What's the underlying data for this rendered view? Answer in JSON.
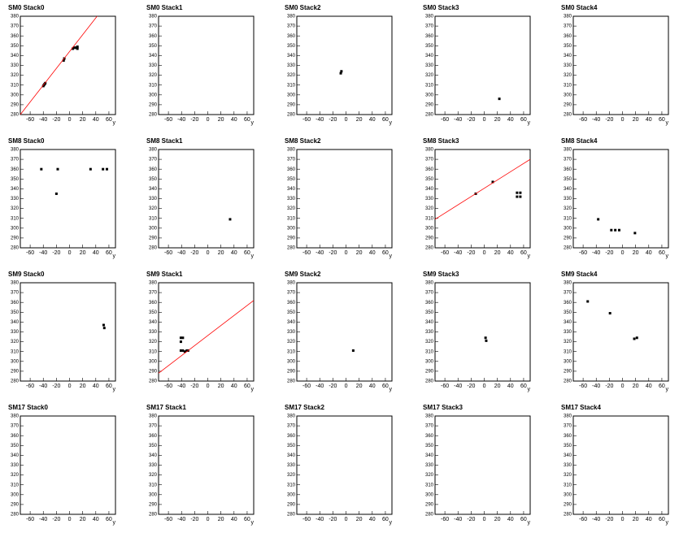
{
  "chart_data": [
    {
      "type": "scatter",
      "title": "SM0 Stack0",
      "x_label": "y",
      "xlim": [
        -75,
        70
      ],
      "ylim": [
        280,
        380
      ],
      "xticks": [
        -60,
        -40,
        -20,
        0,
        20,
        40,
        60
      ],
      "yticks": [
        280,
        290,
        300,
        310,
        320,
        330,
        340,
        350,
        360,
        370,
        380
      ],
      "series": [
        {
          "color": "#000000",
          "x": [
            -40,
            -39,
            -38,
            -37,
            -9,
            -8,
            5,
            7,
            9,
            12,
            12
          ],
          "values": [
            309,
            310,
            311,
            312,
            335,
            337,
            347,
            348,
            348,
            347,
            349
          ]
        },
        {
          "type": "line",
          "color": "#ff0000",
          "x": [
            -75,
            42
          ],
          "values": [
            280,
            380
          ]
        }
      ]
    },
    {
      "type": "scatter",
      "title": "SM0 Stack1",
      "x_label": "y",
      "xlim": [
        -75,
        70
      ],
      "ylim": [
        280,
        380
      ],
      "xticks": [
        -60,
        -40,
        -20,
        0,
        20,
        40,
        60
      ],
      "yticks": [
        280,
        290,
        300,
        310,
        320,
        330,
        340,
        350,
        360,
        370,
        380
      ],
      "series": []
    },
    {
      "type": "scatter",
      "title": "SM0 Stack2",
      "x_label": "y",
      "xlim": [
        -75,
        70
      ],
      "ylim": [
        280,
        380
      ],
      "xticks": [
        -60,
        -40,
        -20,
        0,
        20,
        40,
        60
      ],
      "yticks": [
        280,
        290,
        300,
        310,
        320,
        330,
        340,
        350,
        360,
        370,
        380
      ],
      "series": [
        {
          "color": "#000000",
          "x": [
            -8,
            -7
          ],
          "values": [
            322,
            324
          ]
        }
      ]
    },
    {
      "type": "scatter",
      "title": "SM0 Stack3",
      "x_label": "y",
      "xlim": [
        -75,
        70
      ],
      "ylim": [
        280,
        380
      ],
      "xticks": [
        -60,
        -40,
        -20,
        0,
        20,
        40,
        60
      ],
      "yticks": [
        280,
        290,
        300,
        310,
        320,
        330,
        340,
        350,
        360,
        370,
        380
      ],
      "series": [
        {
          "color": "#000000",
          "x": [
            23
          ],
          "values": [
            296
          ]
        }
      ]
    },
    {
      "type": "scatter",
      "title": "SM0 Stack4",
      "x_label": "y",
      "xlim": [
        -75,
        70
      ],
      "ylim": [
        280,
        380
      ],
      "xticks": [
        -60,
        -40,
        -20,
        0,
        20,
        40,
        60
      ],
      "yticks": [
        280,
        290,
        300,
        310,
        320,
        330,
        340,
        350,
        360,
        370,
        380
      ],
      "series": []
    },
    {
      "type": "scatter",
      "title": "SM8 Stack0",
      "x_label": "y",
      "xlim": [
        -75,
        70
      ],
      "ylim": [
        280,
        380
      ],
      "xticks": [
        -60,
        -40,
        -20,
        0,
        20,
        40,
        60
      ],
      "yticks": [
        280,
        290,
        300,
        310,
        320,
        330,
        340,
        350,
        360,
        370,
        380
      ],
      "series": [
        {
          "color": "#000000",
          "x": [
            -43,
            -18,
            -20,
            32,
            51,
            57
          ],
          "values": [
            360,
            360,
            335,
            360,
            360,
            360
          ]
        }
      ]
    },
    {
      "type": "scatter",
      "title": "SM8 Stack1",
      "x_label": "y",
      "xlim": [
        -75,
        70
      ],
      "ylim": [
        280,
        380
      ],
      "xticks": [
        -60,
        -40,
        -20,
        0,
        20,
        40,
        60
      ],
      "yticks": [
        280,
        290,
        300,
        310,
        320,
        330,
        340,
        350,
        360,
        370,
        380
      ],
      "series": [
        {
          "color": "#000000",
          "x": [
            34
          ],
          "values": [
            309
          ]
        }
      ]
    },
    {
      "type": "scatter",
      "title": "SM8 Stack2",
      "x_label": "y",
      "xlim": [
        -75,
        70
      ],
      "ylim": [
        280,
        380
      ],
      "xticks": [
        -60,
        -40,
        -20,
        0,
        20,
        40,
        60
      ],
      "yticks": [
        280,
        290,
        300,
        310,
        320,
        330,
        340,
        350,
        360,
        370,
        380
      ],
      "series": []
    },
    {
      "type": "scatter",
      "title": "SM8 Stack3",
      "x_label": "y",
      "xlim": [
        -75,
        70
      ],
      "ylim": [
        280,
        380
      ],
      "xticks": [
        -60,
        -40,
        -20,
        0,
        20,
        40,
        60
      ],
      "yticks": [
        280,
        290,
        300,
        310,
        320,
        330,
        340,
        350,
        360,
        370,
        380
      ],
      "series": [
        {
          "color": "#000000",
          "x": [
            -13,
            13,
            50,
            55,
            50,
            55
          ],
          "values": [
            335,
            347,
            336,
            336,
            332,
            332
          ]
        },
        {
          "type": "line",
          "color": "#ff0000",
          "x": [
            -75,
            70
          ],
          "values": [
            309,
            370
          ]
        }
      ]
    },
    {
      "type": "scatter",
      "title": "SM8 Stack4",
      "x_label": "y",
      "xlim": [
        -75,
        70
      ],
      "ylim": [
        280,
        380
      ],
      "xticks": [
        -60,
        -40,
        -20,
        0,
        20,
        40,
        60
      ],
      "yticks": [
        280,
        290,
        300,
        310,
        320,
        330,
        340,
        350,
        360,
        370,
        380
      ],
      "series": [
        {
          "color": "#000000",
          "x": [
            -37,
            -17,
            -11,
            -5,
            19
          ],
          "values": [
            309,
            298,
            298,
            298,
            295
          ]
        }
      ]
    },
    {
      "type": "scatter",
      "title": "SM9 Stack0",
      "x_label": "y",
      "xlim": [
        -75,
        70
      ],
      "ylim": [
        280,
        380
      ],
      "xticks": [
        -60,
        -40,
        -20,
        0,
        20,
        40,
        60
      ],
      "yticks": [
        280,
        290,
        300,
        310,
        320,
        330,
        340,
        350,
        360,
        370,
        380
      ],
      "series": [
        {
          "color": "#000000",
          "x": [
            52,
            53
          ],
          "values": [
            337,
            334
          ]
        }
      ]
    },
    {
      "type": "scatter",
      "title": "SM9 Stack1",
      "x_label": "y",
      "xlim": [
        -75,
        70
      ],
      "ylim": [
        280,
        380
      ],
      "xticks": [
        -60,
        -40,
        -20,
        0,
        20,
        40,
        60
      ],
      "yticks": [
        280,
        290,
        300,
        310,
        320,
        330,
        340,
        350,
        360,
        370,
        380
      ],
      "series": [
        {
          "color": "#000000",
          "x": [
            -41,
            -38,
            -41,
            -41,
            -38,
            -35,
            -32,
            -30
          ],
          "values": [
            324,
            324,
            320,
            311,
            311,
            310,
            311,
            311
          ]
        },
        {
          "type": "line",
          "color": "#ff0000",
          "x": [
            -75,
            70
          ],
          "values": [
            288,
            362
          ]
        }
      ]
    },
    {
      "type": "scatter",
      "title": "SM9 Stack2",
      "x_label": "y",
      "xlim": [
        -75,
        70
      ],
      "ylim": [
        280,
        380
      ],
      "xticks": [
        -60,
        -40,
        -20,
        0,
        20,
        40,
        60
      ],
      "yticks": [
        280,
        290,
        300,
        310,
        320,
        330,
        340,
        350,
        360,
        370,
        380
      ],
      "series": [
        {
          "color": "#000000",
          "x": [
            11
          ],
          "values": [
            311
          ]
        }
      ]
    },
    {
      "type": "scatter",
      "title": "SM9 Stack3",
      "x_label": "y",
      "xlim": [
        -75,
        70
      ],
      "ylim": [
        280,
        380
      ],
      "xticks": [
        -60,
        -40,
        -20,
        0,
        20,
        40,
        60
      ],
      "yticks": [
        280,
        290,
        300,
        310,
        320,
        330,
        340,
        350,
        360,
        370,
        380
      ],
      "series": [
        {
          "color": "#000000",
          "x": [
            2,
            3
          ],
          "values": [
            324,
            321
          ]
        }
      ]
    },
    {
      "type": "scatter",
      "title": "SM9 Stack4",
      "x_label": "y",
      "xlim": [
        -75,
        70
      ],
      "ylim": [
        280,
        380
      ],
      "xticks": [
        -60,
        -40,
        -20,
        0,
        20,
        40,
        60
      ],
      "yticks": [
        280,
        290,
        300,
        310,
        320,
        330,
        340,
        350,
        360,
        370,
        380
      ],
      "series": [
        {
          "color": "#000000",
          "x": [
            -53,
            -19,
            18,
            22
          ],
          "values": [
            361,
            349,
            323,
            324
          ]
        }
      ]
    },
    {
      "type": "scatter",
      "title": "SM17 Stack0",
      "x_label": "y",
      "xlim": [
        -75,
        70
      ],
      "ylim": [
        280,
        380
      ],
      "xticks": [
        -60,
        -40,
        -20,
        0,
        20,
        40,
        60
      ],
      "yticks": [
        280,
        290,
        300,
        310,
        320,
        330,
        340,
        350,
        360,
        370,
        380
      ],
      "series": []
    },
    {
      "type": "scatter",
      "title": "SM17 Stack1",
      "x_label": "y",
      "xlim": [
        -75,
        70
      ],
      "ylim": [
        280,
        380
      ],
      "xticks": [
        -60,
        -40,
        -20,
        0,
        20,
        40,
        60
      ],
      "yticks": [
        280,
        290,
        300,
        310,
        320,
        330,
        340,
        350,
        360,
        370,
        380
      ],
      "series": []
    },
    {
      "type": "scatter",
      "title": "SM17 Stack2",
      "x_label": "y",
      "xlim": [
        -75,
        70
      ],
      "ylim": [
        280,
        380
      ],
      "xticks": [
        -60,
        -40,
        -20,
        0,
        20,
        40,
        60
      ],
      "yticks": [
        280,
        290,
        300,
        310,
        320,
        330,
        340,
        350,
        360,
        370,
        380
      ],
      "series": []
    },
    {
      "type": "scatter",
      "title": "SM17 Stack3",
      "x_label": "y",
      "xlim": [
        -75,
        70
      ],
      "ylim": [
        280,
        380
      ],
      "xticks": [
        -60,
        -40,
        -20,
        0,
        20,
        40,
        60
      ],
      "yticks": [
        280,
        290,
        300,
        310,
        320,
        330,
        340,
        350,
        360,
        370,
        380
      ],
      "series": []
    },
    {
      "type": "scatter",
      "title": "SM17 Stack4",
      "x_label": "y",
      "xlim": [
        -75,
        70
      ],
      "ylim": [
        280,
        380
      ],
      "xticks": [
        -60,
        -40,
        -20,
        0,
        20,
        40,
        60
      ],
      "yticks": [
        280,
        290,
        300,
        310,
        320,
        330,
        340,
        350,
        360,
        370,
        380
      ],
      "series": []
    }
  ]
}
